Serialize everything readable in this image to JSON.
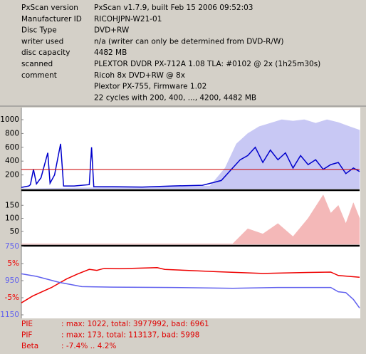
{
  "info": {
    "rows": [
      [
        "PxScan version",
        "PxScan v1.7.9, built Feb 15 2006 09:52:03"
      ],
      [
        "Manufacturer ID",
        "RICOHJPN-W21-01"
      ],
      [
        "Disc Type",
        "DVD+RW"
      ],
      [
        "writer used",
        "n/a (writer can only be determined from DVD-R/W)"
      ],
      [
        "disc capacity",
        "4482 MB"
      ],
      [
        "scanned",
        "PLEXTOR DVDR PX-712A 1.08 TLA: #0102 @ 2x (1h25m30s)"
      ],
      [
        "comment",
        "Ricoh 8x DVD+RW @ 8x"
      ]
    ],
    "extra": [
      "Plextor PX-755, Firmware 1.02",
      "22 cycles with 200, 400, ..., 4200, 4482 MB"
    ]
  },
  "chart_data": [
    {
      "type": "line",
      "xlim": [
        0,
        4482
      ],
      "ylim": [
        0,
        1100
      ],
      "yticks": [
        200,
        400,
        600,
        800,
        1000
      ],
      "threshold": 280,
      "threshold_color": "#cc0000",
      "series": [
        {
          "color": "#c8c8f4",
          "fill": true,
          "x": [
            0,
            2500,
            2700,
            2850,
            3000,
            3150,
            3300,
            3450,
            3600,
            3750,
            3900,
            4050,
            4200,
            4350,
            4482
          ],
          "values": [
            0,
            40,
            300,
            650,
            800,
            900,
            950,
            1000,
            980,
            1000,
            950,
            1000,
            960,
            900,
            850
          ]
        },
        {
          "color": "#0000cc",
          "x": [
            0,
            50,
            100,
            120,
            160,
            200,
            260,
            350,
            380,
            440,
            520,
            560,
            700,
            900,
            930,
            960,
            1200,
            1600,
            2000,
            2400,
            2650,
            2800,
            2900,
            3000,
            3100,
            3200,
            3300,
            3400,
            3500,
            3600,
            3700,
            3800,
            3900,
            4000,
            4100,
            4200,
            4300,
            4400,
            4482
          ],
          "values": [
            20,
            30,
            40,
            60,
            280,
            70,
            160,
            520,
            80,
            200,
            650,
            40,
            40,
            60,
            600,
            30,
            30,
            25,
            40,
            50,
            120,
            300,
            420,
            480,
            600,
            380,
            560,
            420,
            520,
            300,
            480,
            350,
            420,
            280,
            350,
            380,
            220,
            300,
            250
          ]
        }
      ]
    },
    {
      "type": "line",
      "xlim": [
        0,
        4482
      ],
      "ylim": [
        0,
        200
      ],
      "yticks": [
        50,
        100,
        150
      ],
      "series": [
        {
          "color": "#f4b8b8",
          "fill": true,
          "x": [
            0,
            2800,
            3000,
            3200,
            3400,
            3600,
            3800,
            4000,
            4100,
            4200,
            4300,
            4400,
            4482
          ],
          "values": [
            2,
            2,
            60,
            40,
            80,
            30,
            100,
            190,
            120,
            150,
            80,
            160,
            100
          ]
        }
      ]
    },
    {
      "type": "line",
      "xlim": [
        0,
        4482
      ],
      "ylim": [
        -10,
        10
      ],
      "yticks": [
        {
          "value": 5,
          "label": "5%"
        },
        {
          "value": -5,
          "label": "-5%"
        }
      ],
      "y2lim": [
        1150,
        750
      ],
      "y2ticks": [
        750,
        950,
        1150
      ],
      "series": [
        {
          "color": "#ee0000",
          "x": [
            0,
            150,
            400,
            600,
            750,
            900,
            1000,
            1100,
            1300,
            1800,
            1900,
            2600,
            3200,
            3800,
            4100,
            4200,
            4482
          ],
          "values": [
            -6.5,
            -4.5,
            -2,
            0.5,
            2,
            3.3,
            3,
            3.6,
            3.5,
            3.8,
            3.3,
            2.6,
            2.1,
            2.4,
            2.5,
            1.5,
            1.0
          ]
        },
        {
          "color": "#6060ee",
          "axis": "y2",
          "x": [
            0,
            200,
            500,
            800,
            1200,
            2000,
            2800,
            3400,
            4100,
            4200,
            4300,
            4400,
            4482
          ],
          "values": [
            910,
            925,
            960,
            985,
            988,
            990,
            995,
            990,
            990,
            1015,
            1020,
            1060,
            1110
          ]
        }
      ]
    }
  ],
  "stats": [
    [
      "PIE",
      ": max: 1022, total: 3977992, bad: 6961"
    ],
    [
      "PIF",
      ": max: 173, total: 113137, bad: 5998"
    ],
    [
      "Beta",
      ": -7.4% .. 4.2%"
    ]
  ]
}
